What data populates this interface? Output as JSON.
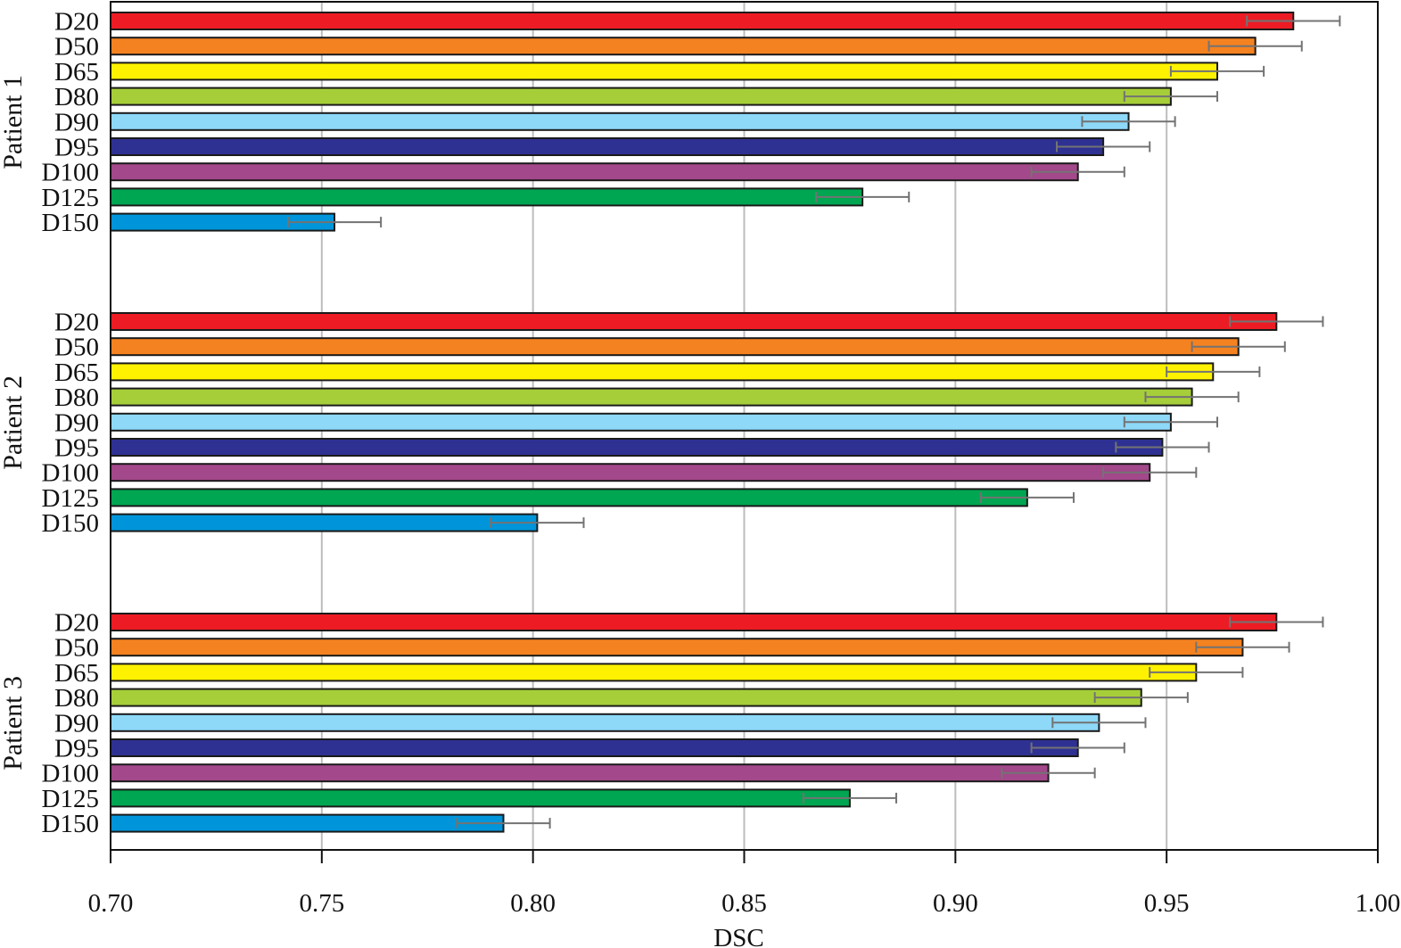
{
  "chart_data": {
    "type": "bar",
    "orientation": "horizontal",
    "title": "",
    "xlabel": "DSC",
    "ylabel": "",
    "xlim": [
      0.7,
      1.0
    ],
    "x_ticks": [
      "0.70",
      "0.75",
      "0.80",
      "0.85",
      "0.90",
      "0.95",
      "1.00"
    ],
    "x_tick_values": [
      0.7,
      0.75,
      0.8,
      0.85,
      0.9,
      0.95,
      1.0
    ],
    "grid": "vertical",
    "legend": "none",
    "categories": [
      "D20",
      "D50",
      "D65",
      "D80",
      "D90",
      "D95",
      "D100",
      "D125",
      "D150"
    ],
    "category_colors": [
      "#ed1c24",
      "#f58220",
      "#fff200",
      "#a6ce39",
      "#8ed8f8",
      "#2e3192",
      "#a3488a",
      "#00a651",
      "#0095da"
    ],
    "groups": [
      {
        "name": "Patient 1",
        "values": [
          0.98,
          0.971,
          0.962,
          0.951,
          0.941,
          0.935,
          0.929,
          0.878,
          0.753
        ],
        "errors": [
          0.011,
          0.011,
          0.011,
          0.011,
          0.011,
          0.011,
          0.011,
          0.011,
          0.011
        ]
      },
      {
        "name": "Patient 2",
        "values": [
          0.976,
          0.967,
          0.961,
          0.956,
          0.951,
          0.949,
          0.946,
          0.917,
          0.801
        ],
        "errors": [
          0.011,
          0.011,
          0.011,
          0.011,
          0.011,
          0.011,
          0.011,
          0.011,
          0.011
        ]
      },
      {
        "name": "Patient 3",
        "values": [
          0.976,
          0.968,
          0.957,
          0.944,
          0.934,
          0.929,
          0.922,
          0.875,
          0.793
        ],
        "errors": [
          0.011,
          0.011,
          0.011,
          0.011,
          0.011,
          0.011,
          0.011,
          0.011,
          0.011
        ]
      }
    ],
    "colors": {
      "gridline": "#bdbdbd",
      "error_bar": "#737373",
      "bar_outline": "#1a1a1a",
      "axis": "#111111"
    }
  }
}
